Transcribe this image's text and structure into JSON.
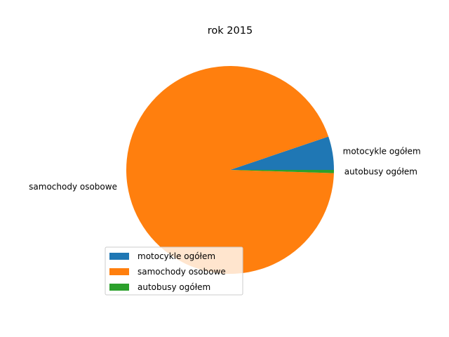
{
  "chart_data": {
    "type": "pie",
    "title": "rok 2015",
    "categories": [
      "motocykle ogółem",
      "samochody osobowe",
      "autobusy ogółem"
    ],
    "values": [
      5.2,
      94.3,
      0.5
    ],
    "colors": [
      "#1f77b4",
      "#ff7f0e",
      "#2ca02c"
    ],
    "start_angle_deg": 0,
    "direction": "counterclockwise",
    "legend": {
      "placement": "lower-left",
      "entries": [
        "motocykle ogółem",
        "samochody osobowe",
        "autobusy ogółem"
      ]
    }
  }
}
